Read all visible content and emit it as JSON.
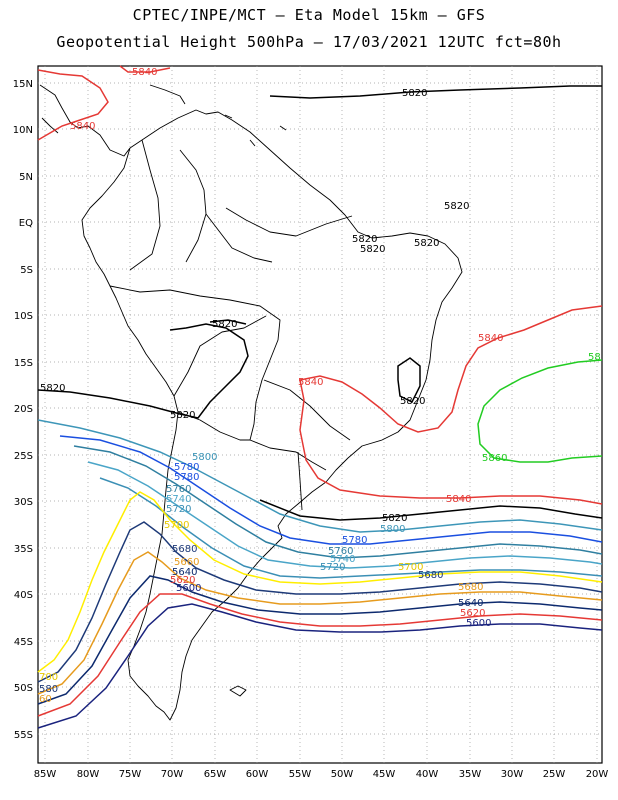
{
  "header": {
    "title_line1": "CPTEC/INPE/MCT –  Eta Model 15km – GFS",
    "title_line2": "Geopotential Height 500hPa – 17/03/2021 12UTC fct=80h"
  },
  "axes": {
    "lon_labels": [
      "85W",
      "80W",
      "75W",
      "70W",
      "65W",
      "60W",
      "55W",
      "50W",
      "45W",
      "40W",
      "35W",
      "30W",
      "25W",
      "20W"
    ],
    "lat_labels": [
      "15N",
      "10N",
      "5N",
      "EQ",
      "5S",
      "10S",
      "15S",
      "20S",
      "25S",
      "30S",
      "35S",
      "40S",
      "45S",
      "50S",
      "55S"
    ],
    "grid": "dotted"
  },
  "colors": {
    "c5600": "#1a237e",
    "c5620": "#e53935",
    "c5640": "#0d2a6e",
    "c5660": "#e69b1e",
    "c5680": "#1e3a78",
    "c5700": "#ffee00",
    "c5720": "#3b8fb5",
    "c5740": "#4aa5c8",
    "c5760": "#2f7fa0",
    "c5780": "#1a4fe0",
    "c5800": "#3d96b8",
    "c5820": "#000000",
    "c5840": "#e53935",
    "c5860": "#22cc22",
    "coast": "#000000"
  },
  "contour_labels": {
    "l5840_a": "5840",
    "l5840_b": "5840",
    "l5840_c": "5840",
    "l5840_d": "5840",
    "l5840_e": "5840",
    "l5820_a": "5820",
    "l5820_b": "5820",
    "l5820_c": "5820",
    "l5820_d": "5820",
    "l5820_e": "5820",
    "l5820_f": "5820",
    "l5820_g": "5820",
    "l5820_h": "5820",
    "l5820_i": "5820",
    "l5820_j": "5820",
    "l58_edge": "58",
    "l5860": "5860",
    "l5800_a": "5800",
    "l5800_b": "5800",
    "l5780_a": "5780",
    "l5780_b": "5780",
    "l5780_c": "5780",
    "l5760_a": "5760",
    "l5760_b": "5760",
    "l5740_a": "5740",
    "l5740_b": "5740",
    "l5720_a": "5720",
    "l5720_b": "5720",
    "l5700_a": "5700",
    "l5700_b": "5700",
    "l700_edge": "700",
    "l5680_a": "5680",
    "l5680_b": "5680",
    "l5680_c": "5680",
    "l5660_a": "5660",
    "l5640_a": "5640",
    "l5640_b": "5640",
    "l5620_a": "5620",
    "l5620_b": "5620",
    "l5600_a": "5600",
    "l5600_b": "5600",
    "l580_edge": "580",
    "l60_edge": "60"
  }
}
